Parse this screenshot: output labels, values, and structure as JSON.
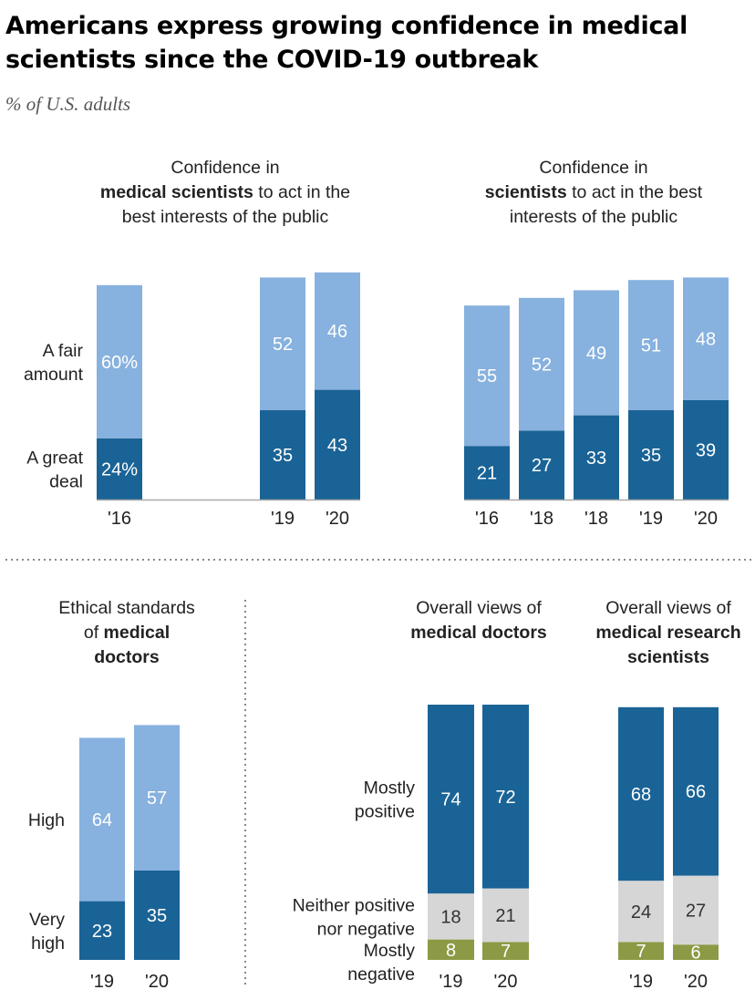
{
  "title_line1": "Americans express growing confidence in medical",
  "title_line2": "scientists since the COVID-19 outbreak",
  "subtitle": "% of U.S. adults",
  "colors": {
    "great_deal": "#1a6396",
    "fair_amount": "#87b1de",
    "neither": "#d6d6d6",
    "negative": "#8c9a45",
    "baseline": "#aaaaaa",
    "divider": "#888888"
  },
  "panels": {
    "p1": {
      "title": [
        [
          {
            "t": "Confidence in",
            "b": false
          }
        ],
        [
          {
            "t": "medical scientists",
            "b": true
          },
          {
            "t": " to act in the",
            "b": false
          }
        ],
        [
          {
            "t": "best interests of the public",
            "b": false
          }
        ]
      ],
      "row_labels": [
        [
          "A fair",
          "amount"
        ],
        [
          "A great",
          "deal"
        ]
      ]
    },
    "p2": {
      "title": [
        [
          {
            "t": "Confidence in",
            "b": false
          }
        ],
        [
          {
            "t": "scientists",
            "b": true
          },
          {
            "t": " to act in the best",
            "b": false
          }
        ],
        [
          {
            "t": "interests of the public",
            "b": false
          }
        ]
      ]
    },
    "p3": {
      "title": [
        [
          {
            "t": "Ethical standards",
            "b": false
          }
        ],
        [
          {
            "t": "of ",
            "b": false
          },
          {
            "t": "medical",
            "b": true
          }
        ],
        [
          {
            "t": "doctors",
            "b": true
          }
        ]
      ],
      "row_labels": [
        [
          "High"
        ],
        [
          "Very",
          "high"
        ]
      ]
    },
    "p4": {
      "title": [
        [
          {
            "t": "Overall views of",
            "b": false
          }
        ],
        [
          {
            "t": "medical doctors",
            "b": true
          }
        ]
      ],
      "row_labels": [
        [
          "Mostly",
          "positive"
        ],
        [
          "Neither positive",
          "nor negative"
        ],
        [
          "Mostly",
          "negative"
        ]
      ]
    },
    "p5": {
      "title": [
        [
          {
            "t": "Overall views of",
            "b": false
          }
        ],
        [
          {
            "t": "medical research",
            "b": true
          }
        ],
        [
          {
            "t": "scientists",
            "b": true
          }
        ]
      ]
    }
  },
  "chart_data": [
    {
      "type": "bar",
      "stacked": true,
      "title": "Confidence in medical scientists to act in the best interests of the public",
      "categories": [
        "'16",
        "'19",
        "'20"
      ],
      "series": [
        {
          "name": "A great deal",
          "values": [
            24,
            35,
            43
          ],
          "labels": [
            "24%",
            "35",
            "43"
          ]
        },
        {
          "name": "A fair amount",
          "values": [
            60,
            52,
            46
          ],
          "labels": [
            "60%",
            "52",
            "46"
          ]
        }
      ]
    },
    {
      "type": "bar",
      "stacked": true,
      "title": "Confidence in scientists to act in the best interests of the public",
      "categories": [
        "'16",
        "'18",
        "'18",
        "'19",
        "'20"
      ],
      "series": [
        {
          "name": "A great deal",
          "values": [
            21,
            27,
            33,
            35,
            39
          ]
        },
        {
          "name": "A fair amount",
          "values": [
            55,
            52,
            49,
            51,
            48
          ]
        }
      ]
    },
    {
      "type": "bar",
      "stacked": true,
      "title": "Ethical standards of medical doctors",
      "categories": [
        "'19",
        "'20"
      ],
      "series": [
        {
          "name": "Very high",
          "values": [
            23,
            35
          ]
        },
        {
          "name": "High",
          "values": [
            64,
            57
          ]
        }
      ]
    },
    {
      "type": "bar",
      "stacked": true,
      "title": "Overall views of medical doctors",
      "categories": [
        "'19",
        "'20"
      ],
      "series": [
        {
          "name": "Mostly negative",
          "values": [
            8,
            7
          ]
        },
        {
          "name": "Neither positive nor negative",
          "values": [
            18,
            21
          ]
        },
        {
          "name": "Mostly positive",
          "values": [
            74,
            72
          ]
        }
      ]
    },
    {
      "type": "bar",
      "stacked": true,
      "title": "Overall views of medical research scientists",
      "categories": [
        "'19",
        "'20"
      ],
      "series": [
        {
          "name": "Mostly negative",
          "values": [
            7,
            6
          ]
        },
        {
          "name": "Neither positive nor negative",
          "values": [
            24,
            27
          ]
        },
        {
          "name": "Mostly positive",
          "values": [
            68,
            66
          ]
        }
      ]
    }
  ]
}
